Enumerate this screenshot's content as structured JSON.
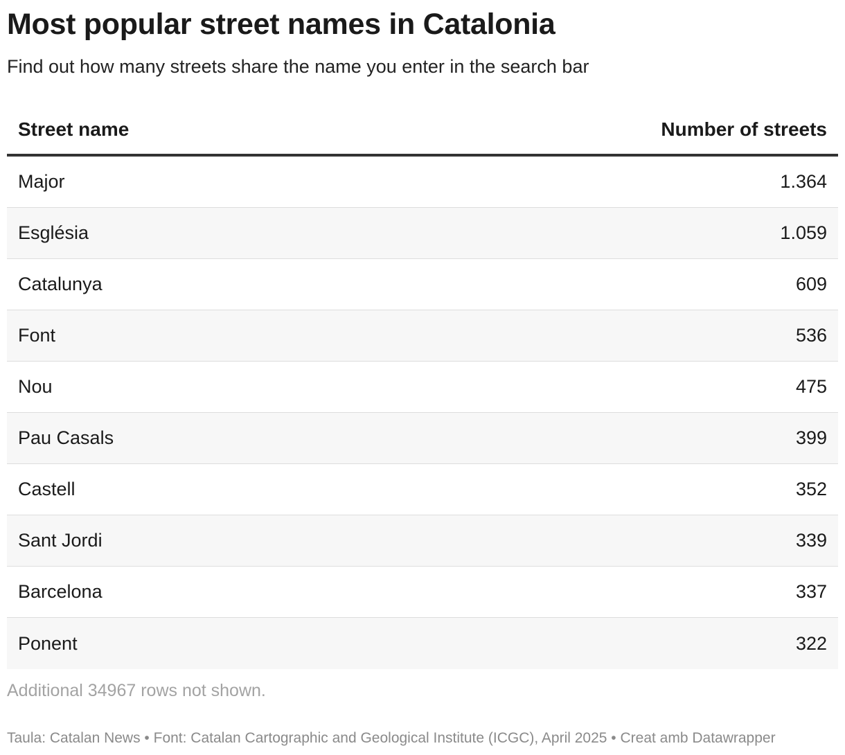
{
  "title": "Most popular street names in Catalonia",
  "subtitle": "Find out how many streets share the name you enter in the search bar",
  "chart_data": {
    "type": "table",
    "columns": [
      "Street name",
      "Number of streets"
    ],
    "rows": [
      {
        "name": "Major",
        "value": "1.364"
      },
      {
        "name": "Església",
        "value": "1.059"
      },
      {
        "name": "Catalunya",
        "value": "609"
      },
      {
        "name": "Font",
        "value": "536"
      },
      {
        "name": "Nou",
        "value": "475"
      },
      {
        "name": "Pau Casals",
        "value": "399"
      },
      {
        "name": "Castell",
        "value": "352"
      },
      {
        "name": "Sant Jordi",
        "value": "339"
      },
      {
        "name": "Barcelona",
        "value": "337"
      },
      {
        "name": "Ponent",
        "value": "322"
      }
    ]
  },
  "note": "Additional 34967 rows not shown.",
  "footer": "Taula: Catalan News • Font: Catalan Cartographic and Geological Institute (ICGC), April 2025 • Creat amb Datawrapper",
  "colors": {
    "header_rule": "#333333",
    "row_alt": "#f7f7f7",
    "row_divider": "#dddddd",
    "note_text": "#a3a3a3",
    "footer_text": "#8a8a8a"
  }
}
